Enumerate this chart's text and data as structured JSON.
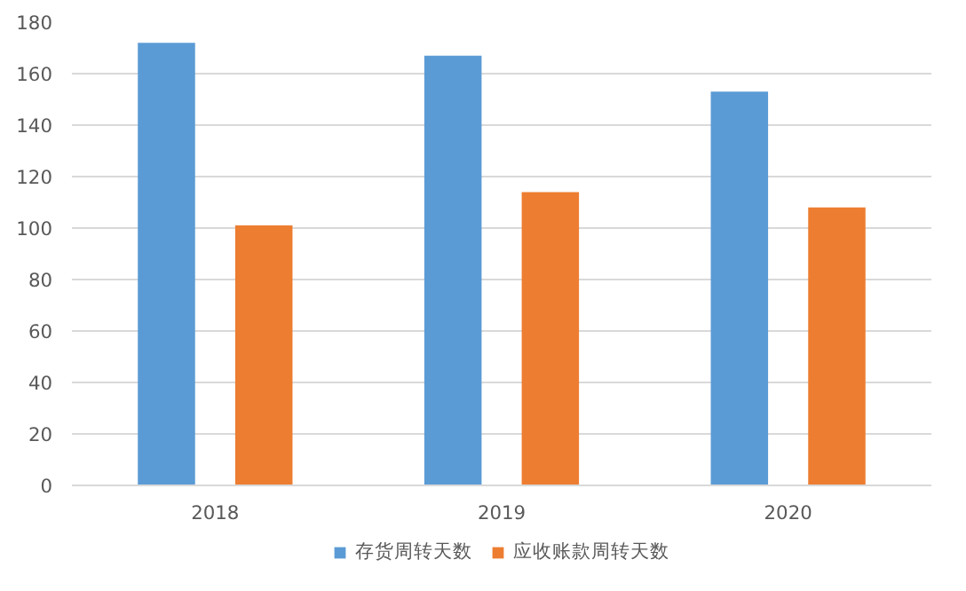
{
  "chart_data": {
    "type": "bar",
    "categories": [
      "2018",
      "2019",
      "2020"
    ],
    "series": [
      {
        "name": "存货周转天数",
        "color": "#5b9bd5",
        "values": [
          172,
          167,
          153
        ]
      },
      {
        "name": "应收账款周转天数",
        "color": "#ed7d31",
        "values": [
          101,
          114,
          108
        ]
      }
    ],
    "ylim": [
      0,
      180
    ],
    "yticks": [
      0,
      20,
      40,
      60,
      80,
      100,
      120,
      140,
      160,
      180
    ],
    "grid": "y",
    "legend": "bottom"
  }
}
